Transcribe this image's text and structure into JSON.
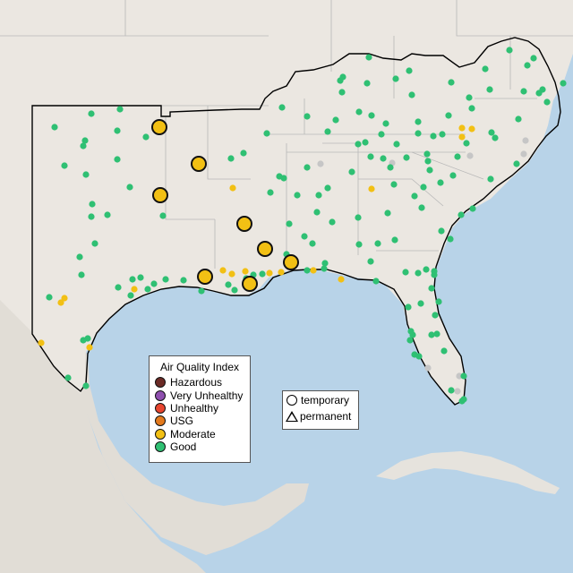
{
  "colors": {
    "ocean": "#b8d3e8",
    "land": "#ebe7e1",
    "mexico": "#e1ddd6",
    "border": "#000000",
    "state_lines": "#b8b8b8",
    "cuba": "#e6e3dd"
  },
  "legend": {
    "title": "Air Quality Index",
    "items": [
      {
        "label": "Hazardous",
        "color": "#6b2b26"
      },
      {
        "label": "Very Unhealthy",
        "color": "#8e4fae"
      },
      {
        "label": "Unhealthy",
        "color": "#e7452f"
      },
      {
        "label": "USG",
        "color": "#e47a1d"
      },
      {
        "label": "Moderate",
        "color": "#f2c014"
      },
      {
        "label": "Good",
        "color": "#2fc073"
      }
    ]
  },
  "monitor_type_legend": {
    "items": [
      {
        "label": "temporary",
        "icon": "circle-icon"
      },
      {
        "label": "permanent",
        "icon": "triangle-icon"
      }
    ]
  },
  "markers": {
    "large_moderate": [
      [
        178,
        142
      ],
      [
        222,
        183
      ],
      [
        179,
        218
      ],
      [
        273,
        250
      ],
      [
        296,
        278
      ],
      [
        325,
        293
      ],
      [
        229,
        309
      ],
      [
        279,
        317
      ]
    ],
    "small_moderate": [
      [
        260,
        210
      ],
      [
        249,
        302
      ],
      [
        259,
        306
      ],
      [
        274,
        303
      ],
      [
        301,
        305
      ],
      [
        314,
        304
      ],
      [
        350,
        302
      ],
      [
        381,
        312
      ],
      [
        415,
        211
      ],
      [
        516,
        143
      ],
      [
        527,
        144
      ],
      [
        516,
        153
      ],
      [
        150,
        323
      ],
      [
        68,
        338
      ],
      [
        72,
        333
      ],
      [
        46,
        383
      ],
      [
        100,
        388
      ]
    ],
    "gray": [
      [
        358,
        183
      ],
      [
        438,
        182
      ],
      [
        525,
        174
      ],
      [
        587,
        157
      ],
      [
        478,
        411
      ],
      [
        513,
        420
      ],
      [
        511,
        437
      ],
      [
        585,
        172
      ]
    ],
    "good": [
      [
        102,
        127
      ],
      [
        134,
        122
      ],
      [
        61,
        142
      ],
      [
        95,
        157
      ],
      [
        93,
        163
      ],
      [
        131,
        146
      ],
      [
        163,
        153
      ],
      [
        72,
        185
      ],
      [
        96,
        195
      ],
      [
        131,
        178
      ],
      [
        145,
        209
      ],
      [
        103,
        228
      ],
      [
        102,
        242
      ],
      [
        120,
        240
      ],
      [
        106,
        272
      ],
      [
        91,
        307
      ],
      [
        89,
        287
      ],
      [
        132,
        321
      ],
      [
        148,
        312
      ],
      [
        172,
        317
      ],
      [
        165,
        323
      ],
      [
        185,
        312
      ],
      [
        146,
        330
      ],
      [
        157,
        310
      ],
      [
        55,
        332
      ],
      [
        76,
        422
      ],
      [
        96,
        431
      ],
      [
        98,
        378
      ],
      [
        93,
        380
      ],
      [
        182,
        241
      ],
      [
        258,
        177
      ],
      [
        272,
        171
      ],
      [
        298,
        149
      ],
      [
        315,
        120
      ],
      [
        343,
        130
      ],
      [
        366,
        147
      ],
      [
        375,
        134
      ],
      [
        401,
        125
      ],
      [
        415,
        129
      ],
      [
        408,
        159
      ],
      [
        426,
        150
      ],
      [
        431,
        138
      ],
      [
        467,
        149
      ],
      [
        484,
        152
      ],
      [
        478,
        180
      ],
      [
        506,
        196
      ],
      [
        521,
        160
      ],
      [
        549,
        148
      ],
      [
        579,
        133
      ],
      [
        577,
        183
      ],
      [
        548,
        200
      ],
      [
        382,
        103
      ],
      [
        380,
        90
      ],
      [
        383,
        86
      ],
      [
        412,
        64
      ],
      [
        410,
        93
      ],
      [
        442,
        88
      ],
      [
        460,
        106
      ],
      [
        457,
        79
      ],
      [
        504,
        92
      ],
      [
        524,
        109
      ],
      [
        542,
        77
      ],
      [
        569,
        56
      ],
      [
        589,
        73
      ],
      [
        596,
        65
      ],
      [
        611,
        114
      ],
      [
        606,
        100
      ],
      [
        629,
        93
      ],
      [
        494,
        150
      ],
      [
        511,
        175
      ],
      [
        477,
        172
      ],
      [
        356,
        218
      ],
      [
        366,
        210
      ],
      [
        354,
        237
      ],
      [
        371,
        248
      ],
      [
        340,
        264
      ],
      [
        323,
        250
      ],
      [
        349,
        272
      ],
      [
        400,
        243
      ],
      [
        401,
        273
      ],
      [
        422,
        272
      ],
      [
        433,
        238
      ],
      [
        440,
        206
      ],
      [
        463,
        219
      ],
      [
        473,
        209
      ],
      [
        480,
        190
      ],
      [
        492,
        204
      ],
      [
        515,
        240
      ],
      [
        528,
        233
      ],
      [
        503,
        267
      ],
      [
        493,
        258
      ],
      [
        443,
        161
      ],
      [
        454,
        176
      ],
      [
        471,
        232
      ],
      [
        441,
        268
      ],
      [
        414,
        292
      ],
      [
        420,
        314
      ],
      [
        453,
        304
      ],
      [
        467,
        305
      ],
      [
        485,
        307
      ],
      [
        482,
        322
      ],
      [
        485,
        303
      ],
      [
        476,
        301
      ],
      [
        456,
        343
      ],
      [
        470,
        339
      ],
      [
        486,
        352
      ],
      [
        490,
        337
      ],
      [
        488,
        373
      ],
      [
        461,
        374
      ],
      [
        463,
        396
      ],
      [
        468,
        398
      ],
      [
        482,
        374
      ],
      [
        496,
        392
      ],
      [
        518,
        420
      ],
      [
        504,
        436
      ],
      [
        516,
        448
      ],
      [
        518,
        446
      ],
      [
        458,
        380
      ],
      [
        459,
        370
      ],
      [
        343,
        187
      ],
      [
        312,
        197
      ],
      [
        332,
        218
      ],
      [
        317,
        199
      ],
      [
        302,
        215
      ],
      [
        293,
        306
      ],
      [
        275,
        311
      ],
      [
        255,
        318
      ],
      [
        283,
        307
      ],
      [
        262,
        324
      ],
      [
        225,
        325
      ],
      [
        205,
        313
      ],
      [
        393,
        192
      ],
      [
        363,
        294
      ],
      [
        362,
        300
      ],
      [
        343,
        302
      ],
      [
        320,
        284
      ],
      [
        400,
        161
      ],
      [
        414,
        175
      ],
      [
        428,
        177
      ],
      [
        436,
        187
      ],
      [
        553,
        154
      ],
      [
        527,
        121
      ],
      [
        585,
        102
      ],
      [
        602,
        104
      ],
      [
        547,
        100
      ],
      [
        501,
        129
      ],
      [
        467,
        136
      ]
    ]
  }
}
